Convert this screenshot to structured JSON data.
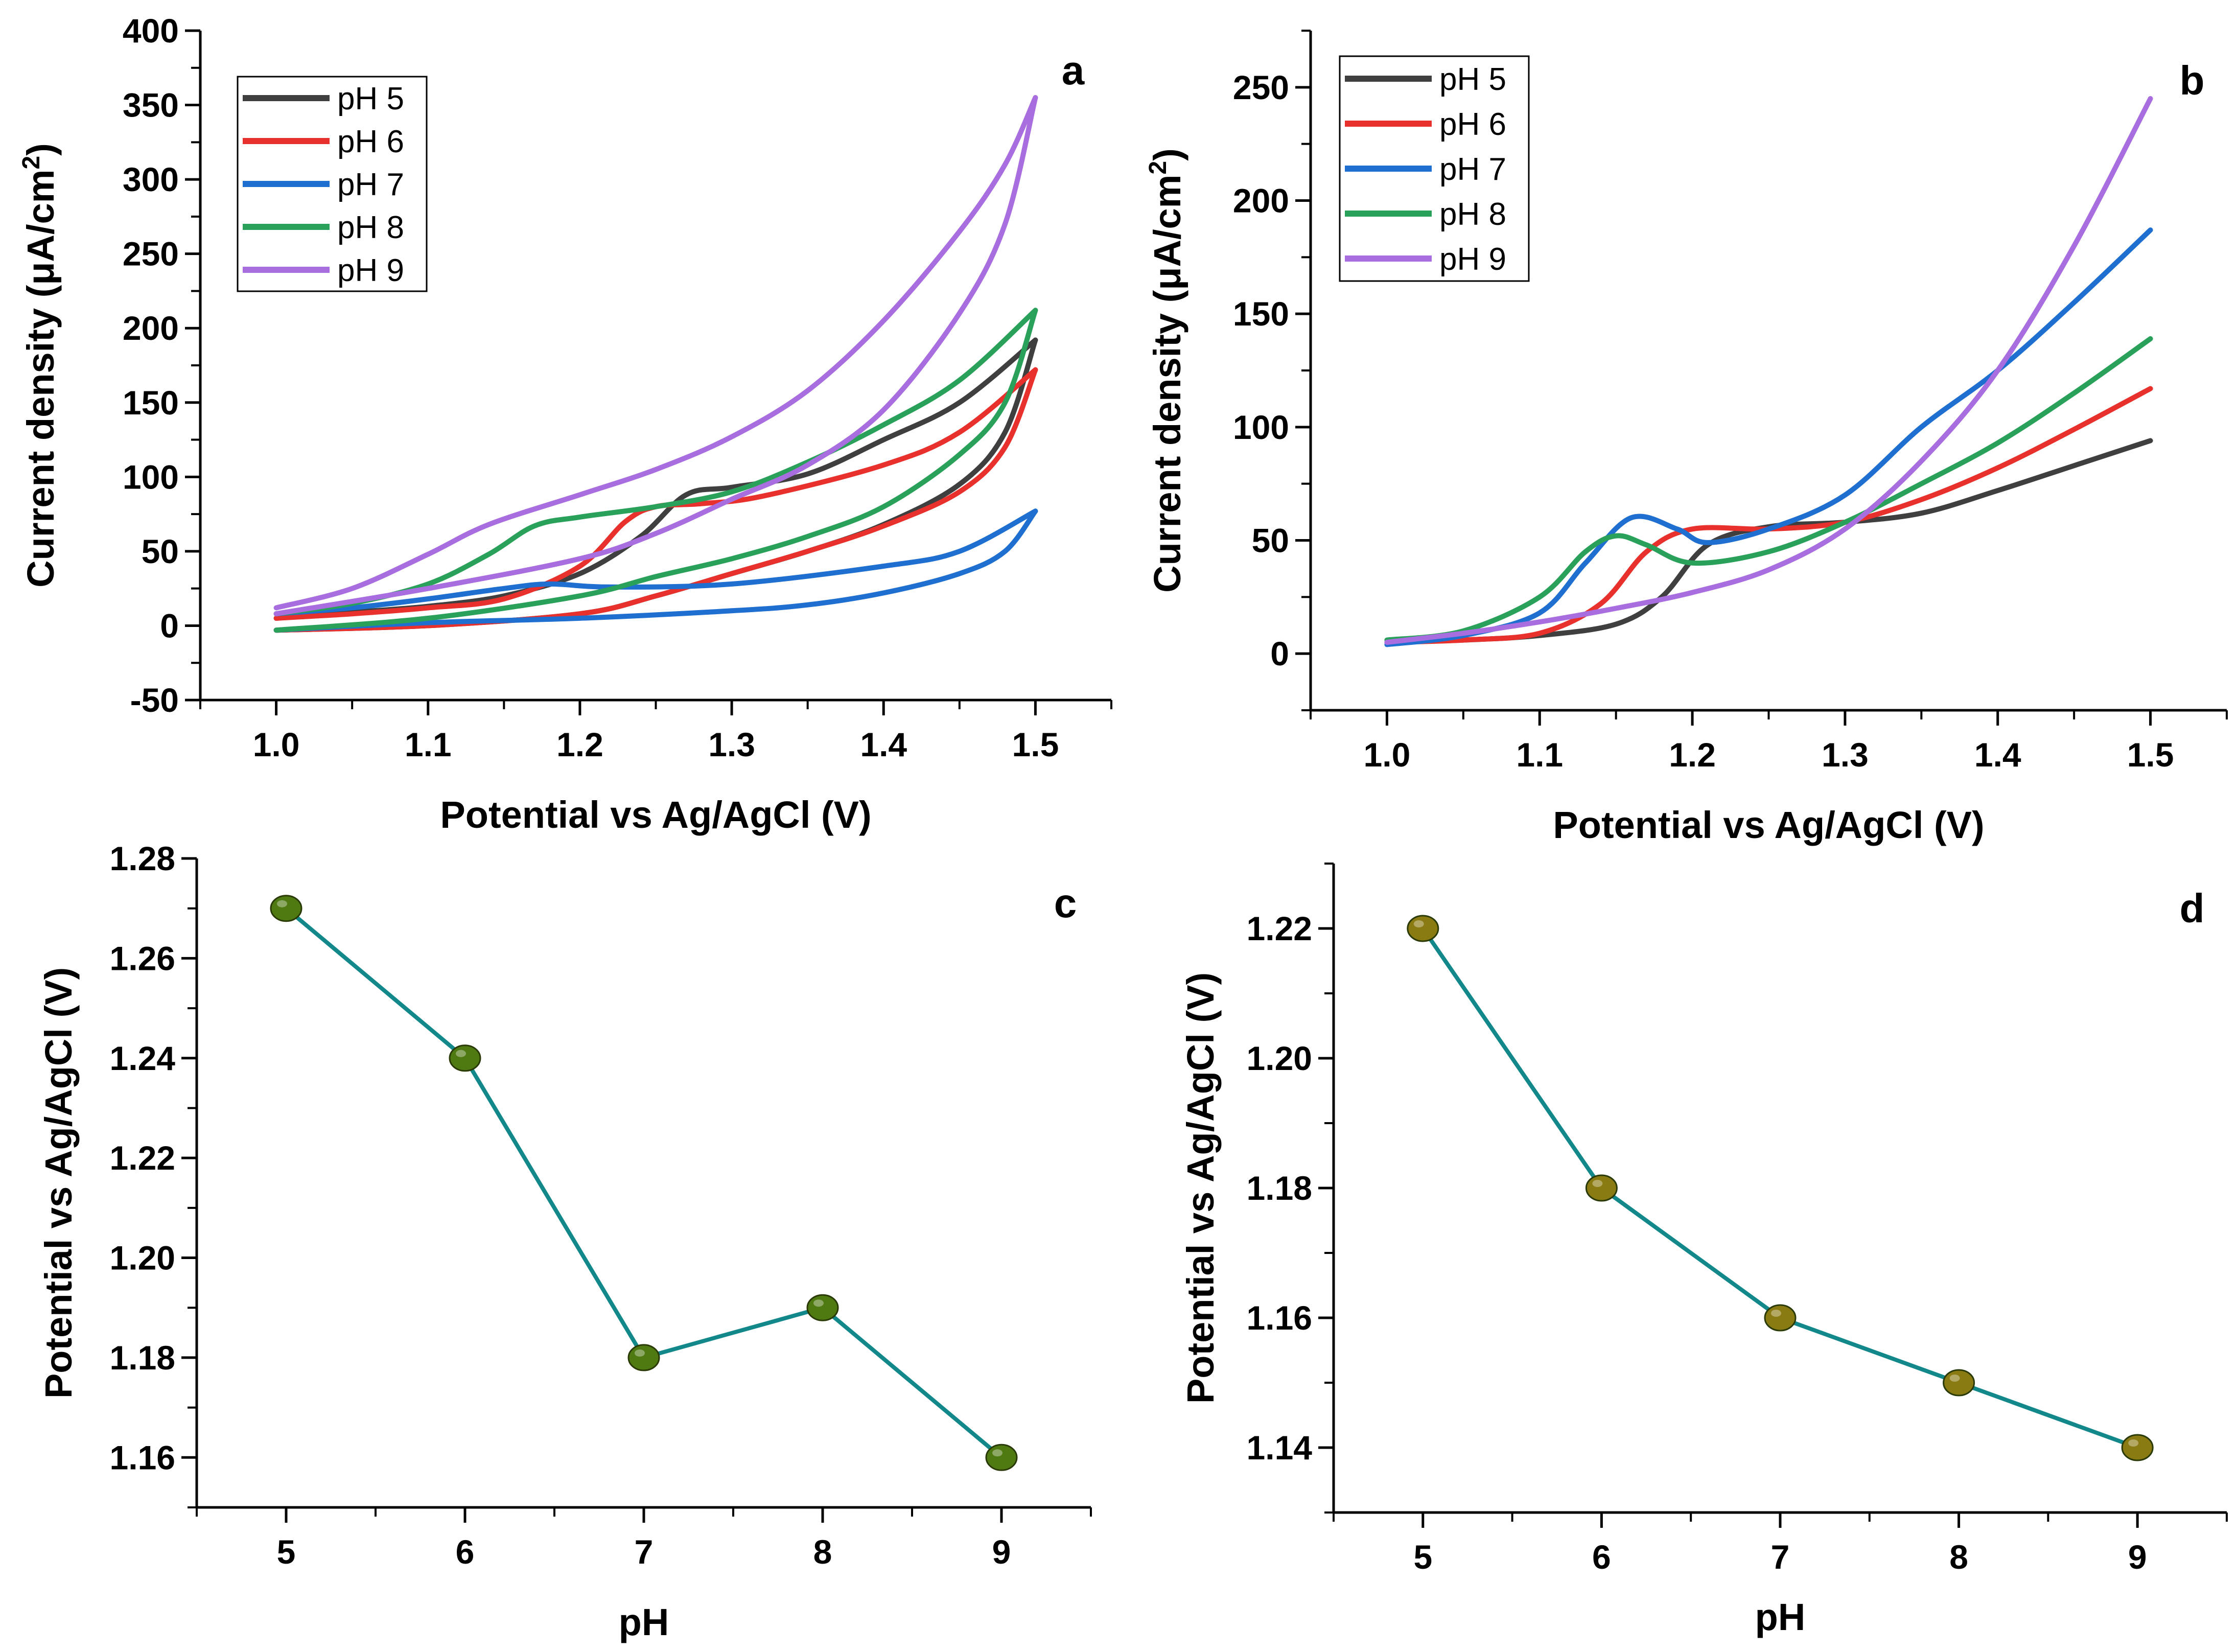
{
  "chart_data": [
    {
      "panel": "a",
      "type": "line",
      "xlabel": "Potential vs Ag/AgCl (V)",
      "ylabel": "Current density (μA/cm²)",
      "ylabel_main": "Current density (μA/cm",
      "ylabel_sup": "2",
      "ylabel_end": ")",
      "xlim": [
        0.95,
        1.55
      ],
      "ylim": [
        -50,
        400
      ],
      "xticks": [
        1.0,
        1.1,
        1.2,
        1.3,
        1.4,
        1.5
      ],
      "xtick_labels": [
        "1.0",
        "1.1",
        "1.2",
        "1.3",
        "1.4",
        "1.5"
      ],
      "yticks": [
        -50,
        0,
        50,
        100,
        150,
        200,
        250,
        300,
        350,
        400
      ],
      "ytick_labels": [
        "-50",
        "0",
        "50",
        "100",
        "150",
        "200",
        "250",
        "300",
        "350",
        "400"
      ],
      "legend_position": "top-left",
      "series": [
        {
          "name": "pH 5",
          "color": "#3f3f3f",
          "forward": [
            [
              1.0,
              5
            ],
            [
              1.05,
              9
            ],
            [
              1.1,
              13
            ],
            [
              1.15,
              20
            ],
            [
              1.2,
              35
            ],
            [
              1.24,
              60
            ],
            [
              1.27,
              88
            ],
            [
              1.3,
              93
            ],
            [
              1.35,
              102
            ],
            [
              1.4,
              125
            ],
            [
              1.45,
              150
            ],
            [
              1.5,
              192
            ]
          ],
          "reverse": [
            [
              1.5,
              192
            ],
            [
              1.48,
              130
            ],
            [
              1.45,
              95
            ],
            [
              1.4,
              68
            ],
            [
              1.35,
              50
            ],
            [
              1.3,
              35
            ],
            [
              1.25,
              20
            ],
            [
              1.2,
              8
            ],
            [
              1.1,
              0
            ],
            [
              1.0,
              -3
            ]
          ]
        },
        {
          "name": "pH 6",
          "color": "#e8302c",
          "forward": [
            [
              1.0,
              5
            ],
            [
              1.05,
              8
            ],
            [
              1.1,
              12
            ],
            [
              1.15,
              18
            ],
            [
              1.2,
              40
            ],
            [
              1.23,
              70
            ],
            [
              1.25,
              80
            ],
            [
              1.28,
              82
            ],
            [
              1.32,
              87
            ],
            [
              1.4,
              108
            ],
            [
              1.45,
              130
            ],
            [
              1.5,
              172
            ]
          ],
          "reverse": [
            [
              1.5,
              172
            ],
            [
              1.48,
              120
            ],
            [
              1.45,
              90
            ],
            [
              1.4,
              67
            ],
            [
              1.35,
              50
            ],
            [
              1.3,
              35
            ],
            [
              1.25,
              20
            ],
            [
              1.2,
              8
            ],
            [
              1.1,
              0
            ],
            [
              1.0,
              -3
            ]
          ]
        },
        {
          "name": "pH 7",
          "color": "#1f6fd0",
          "forward": [
            [
              1.0,
              8
            ],
            [
              1.05,
              12
            ],
            [
              1.1,
              18
            ],
            [
              1.15,
              25
            ],
            [
              1.18,
              28
            ],
            [
              1.22,
              26
            ],
            [
              1.3,
              28
            ],
            [
              1.4,
              40
            ],
            [
              1.45,
              50
            ],
            [
              1.5,
              77
            ]
          ],
          "reverse": [
            [
              1.5,
              77
            ],
            [
              1.48,
              50
            ],
            [
              1.45,
              35
            ],
            [
              1.4,
              22
            ],
            [
              1.35,
              14
            ],
            [
              1.3,
              10
            ],
            [
              1.2,
              5
            ],
            [
              1.1,
              2
            ],
            [
              1.0,
              -3
            ]
          ]
        },
        {
          "name": "pH 8",
          "color": "#2aa15a",
          "forward": [
            [
              1.0,
              8
            ],
            [
              1.05,
              15
            ],
            [
              1.1,
              28
            ],
            [
              1.14,
              48
            ],
            [
              1.17,
              67
            ],
            [
              1.2,
              73
            ],
            [
              1.25,
              80
            ],
            [
              1.3,
              90
            ],
            [
              1.35,
              110
            ],
            [
              1.4,
              135
            ],
            [
              1.45,
              165
            ],
            [
              1.5,
              212
            ]
          ],
          "reverse": [
            [
              1.5,
              212
            ],
            [
              1.48,
              150
            ],
            [
              1.45,
              115
            ],
            [
              1.4,
              80
            ],
            [
              1.35,
              60
            ],
            [
              1.3,
              45
            ],
            [
              1.25,
              33
            ],
            [
              1.2,
              20
            ],
            [
              1.1,
              5
            ],
            [
              1.0,
              -3
            ]
          ]
        },
        {
          "name": "pH 9",
          "color": "#a86ee0",
          "forward": [
            [
              1.0,
              12
            ],
            [
              1.05,
              25
            ],
            [
              1.1,
              48
            ],
            [
              1.14,
              68
            ],
            [
              1.2,
              88
            ],
            [
              1.25,
              105
            ],
            [
              1.3,
              127
            ],
            [
              1.35,
              158
            ],
            [
              1.4,
              205
            ],
            [
              1.45,
              265
            ],
            [
              1.48,
              310
            ],
            [
              1.5,
              355
            ]
          ],
          "reverse": [
            [
              1.5,
              355
            ],
            [
              1.48,
              270
            ],
            [
              1.45,
              210
            ],
            [
              1.4,
              145
            ],
            [
              1.35,
              108
            ],
            [
              1.3,
              85
            ],
            [
              1.25,
              62
            ],
            [
              1.2,
              45
            ],
            [
              1.1,
              25
            ],
            [
              1.0,
              8
            ]
          ]
        }
      ]
    },
    {
      "panel": "b",
      "type": "line",
      "xlabel": "Potential vs Ag/AgCl (V)",
      "ylabel": "Current density (μA/cm²)",
      "ylabel_main": "Current density (μA/cm",
      "ylabel_sup": "2",
      "ylabel_end": ")",
      "xlim": [
        0.95,
        1.55
      ],
      "ylim": [
        -25,
        275
      ],
      "xticks": [
        1.0,
        1.1,
        1.2,
        1.3,
        1.4,
        1.5
      ],
      "xtick_labels": [
        "1.0",
        "1.1",
        "1.2",
        "1.3",
        "1.4",
        "1.5"
      ],
      "yticks": [
        0,
        50,
        100,
        150,
        200,
        250
      ],
      "ytick_labels": [
        "0",
        "50",
        "100",
        "150",
        "200",
        "250"
      ],
      "legend_position": "top-left",
      "series": [
        {
          "name": "pH 5",
          "color": "#3f3f3f",
          "points": [
            [
              1.0,
              5
            ],
            [
              1.05,
              6
            ],
            [
              1.1,
              8
            ],
            [
              1.15,
              13
            ],
            [
              1.18,
              25
            ],
            [
              1.21,
              48
            ],
            [
              1.25,
              56
            ],
            [
              1.3,
              58
            ],
            [
              1.35,
              62
            ],
            [
              1.4,
              72
            ],
            [
              1.45,
              83
            ],
            [
              1.5,
              94
            ]
          ]
        },
        {
          "name": "pH 6",
          "color": "#e8302c",
          "points": [
            [
              1.0,
              5
            ],
            [
              1.05,
              6
            ],
            [
              1.1,
              9
            ],
            [
              1.14,
              22
            ],
            [
              1.17,
              45
            ],
            [
              1.2,
              55
            ],
            [
              1.25,
              55
            ],
            [
              1.3,
              58
            ],
            [
              1.35,
              68
            ],
            [
              1.4,
              82
            ],
            [
              1.45,
              99
            ],
            [
              1.5,
              117
            ]
          ]
        },
        {
          "name": "pH 7",
          "color": "#1f6fd0",
          "points": [
            [
              1.0,
              4
            ],
            [
              1.05,
              8
            ],
            [
              1.1,
              18
            ],
            [
              1.13,
              40
            ],
            [
              1.16,
              60
            ],
            [
              1.19,
              55
            ],
            [
              1.21,
              49
            ],
            [
              1.25,
              55
            ],
            [
              1.3,
              70
            ],
            [
              1.35,
              100
            ],
            [
              1.4,
              125
            ],
            [
              1.45,
              155
            ],
            [
              1.5,
              187
            ]
          ]
        },
        {
          "name": "pH 8",
          "color": "#2aa15a",
          "points": [
            [
              1.0,
              6
            ],
            [
              1.05,
              10
            ],
            [
              1.1,
              25
            ],
            [
              1.13,
              45
            ],
            [
              1.15,
              52
            ],
            [
              1.17,
              48
            ],
            [
              1.2,
              40
            ],
            [
              1.25,
              45
            ],
            [
              1.3,
              58
            ],
            [
              1.35,
              75
            ],
            [
              1.4,
              93
            ],
            [
              1.45,
              115
            ],
            [
              1.5,
              139
            ]
          ]
        },
        {
          "name": "pH 9",
          "color": "#a86ee0",
          "points": [
            [
              1.0,
              5
            ],
            [
              1.05,
              9
            ],
            [
              1.1,
              14
            ],
            [
              1.15,
              20
            ],
            [
              1.2,
              27
            ],
            [
              1.25,
              37
            ],
            [
              1.3,
              55
            ],
            [
              1.35,
              85
            ],
            [
              1.4,
              125
            ],
            [
              1.45,
              180
            ],
            [
              1.5,
              245
            ]
          ]
        }
      ]
    },
    {
      "panel": "c",
      "type": "scatter",
      "xlabel": "pH",
      "ylabel": "Potential vs Ag/AgCl (V)",
      "xlim": [
        4.5,
        9.5
      ],
      "ylim": [
        1.15,
        1.28
      ],
      "xticks": [
        5,
        6,
        7,
        8,
        9
      ],
      "xtick_labels": [
        "5",
        "6",
        "7",
        "8",
        "9"
      ],
      "yticks": [
        1.16,
        1.18,
        1.2,
        1.22,
        1.24,
        1.26,
        1.28
      ],
      "ytick_labels": [
        "1.16",
        "1.18",
        "1.20",
        "1.22",
        "1.24",
        "1.26",
        "1.28"
      ],
      "line_color": "#13888a",
      "marker_color": "#4f7a12",
      "x": [
        5,
        6,
        7,
        8,
        9
      ],
      "y": [
        1.27,
        1.24,
        1.18,
        1.19,
        1.16
      ]
    },
    {
      "panel": "d",
      "type": "scatter",
      "xlabel": "pH",
      "ylabel": "Potential vs Ag/AgCl (V)",
      "xlim": [
        4.5,
        9.5
      ],
      "ylim": [
        1.13,
        1.23
      ],
      "xticks": [
        5,
        6,
        7,
        8,
        9
      ],
      "xtick_labels": [
        "5",
        "6",
        "7",
        "8",
        "9"
      ],
      "yticks": [
        1.14,
        1.16,
        1.18,
        1.2,
        1.22
      ],
      "ytick_labels": [
        "1.14",
        "1.16",
        "1.18",
        "1.20",
        "1.22"
      ],
      "line_color": "#13888a",
      "marker_color": "#8a7a12",
      "x": [
        5,
        6,
        7,
        8,
        9
      ],
      "y": [
        1.22,
        1.18,
        1.16,
        1.15,
        1.14
      ]
    }
  ]
}
